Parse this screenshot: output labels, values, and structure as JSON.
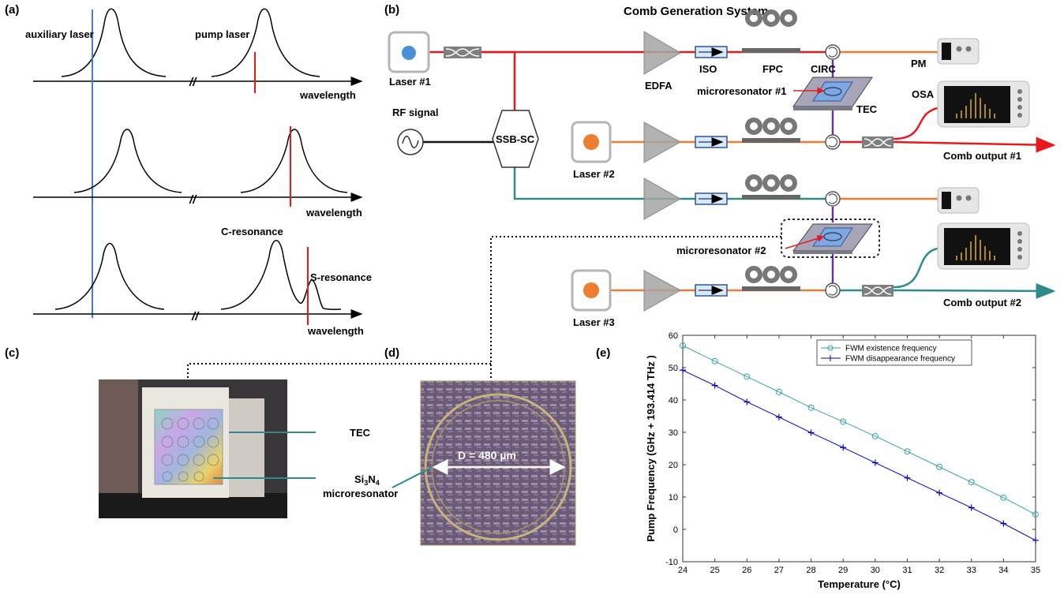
{
  "panels": {
    "a": "(a)",
    "b": "(b)",
    "c": "(c)",
    "d": "(d)",
    "e": "(e)"
  },
  "panel_a": {
    "auxiliary_laser": "auxiliary laser",
    "pump_laser": "pump laser",
    "wavelength": "wavelength",
    "c_resonance": "C-resonance",
    "s_resonance": "S-resonance",
    "break_mark": "//"
  },
  "panel_b": {
    "title": "Comb Generation System",
    "laser1": "Laser #1",
    "laser2": "Laser #2",
    "laser3": "Laser #3",
    "rf_signal": "RF signal",
    "ssb_sc": "SSB-SC",
    "edfa": "EDFA",
    "iso": "ISO",
    "fpc": "FPC",
    "circ": "CIRC",
    "pm": "PM",
    "osa": "OSA",
    "tec": "TEC",
    "micro1": "microresonator #1",
    "micro2": "microresonator #2",
    "comb1": "Comb output #1",
    "comb2": "Comb output #2"
  },
  "panel_c": {
    "tec": "TEC",
    "si3n4_prefix": "Si",
    "si3n4_sub1": "3",
    "si3n4_mid": "N",
    "si3n4_sub2": "4",
    "microresonator": "microresonator"
  },
  "panel_d": {
    "diameter": "D = 480 µm"
  },
  "colors": {
    "blue_laser": "#4a7ebb",
    "red": "#e8191d",
    "orange": "#ed7d31",
    "teal": "#2e8b8b",
    "purple": "#7030a0",
    "series1": "#3aa3a3",
    "series2": "#0000cc"
  },
  "chart_data": {
    "type": "line",
    "xlabel": "Temperature (°C)",
    "ylabel": "Pump Frequency (GHz  + 193.414 THz )",
    "xlim": [
      24,
      35
    ],
    "ylim": [
      -10,
      60
    ],
    "xticks": [
      24,
      25,
      26,
      27,
      28,
      29,
      30,
      31,
      32,
      33,
      34,
      35
    ],
    "yticks": [
      -10,
      0,
      10,
      20,
      30,
      40,
      50,
      60
    ],
    "grid": false,
    "legend_position": "top-right",
    "x": [
      24,
      25,
      26,
      27,
      28,
      29,
      30,
      31,
      32,
      33,
      34,
      35
    ],
    "series": [
      {
        "name": "FWM existence frequency",
        "marker": "circle",
        "values": [
          56.8,
          52.0,
          47.2,
          42.5,
          37.6,
          33.3,
          28.8,
          24.1,
          19.3,
          14.6,
          9.8,
          4.6
        ]
      },
      {
        "name": "FWM disappearance frequency",
        "marker": "plus",
        "values": [
          49.2,
          44.5,
          39.4,
          34.7,
          29.9,
          25.3,
          20.6,
          15.9,
          11.3,
          6.7,
          1.8,
          -3.4
        ]
      }
    ]
  }
}
